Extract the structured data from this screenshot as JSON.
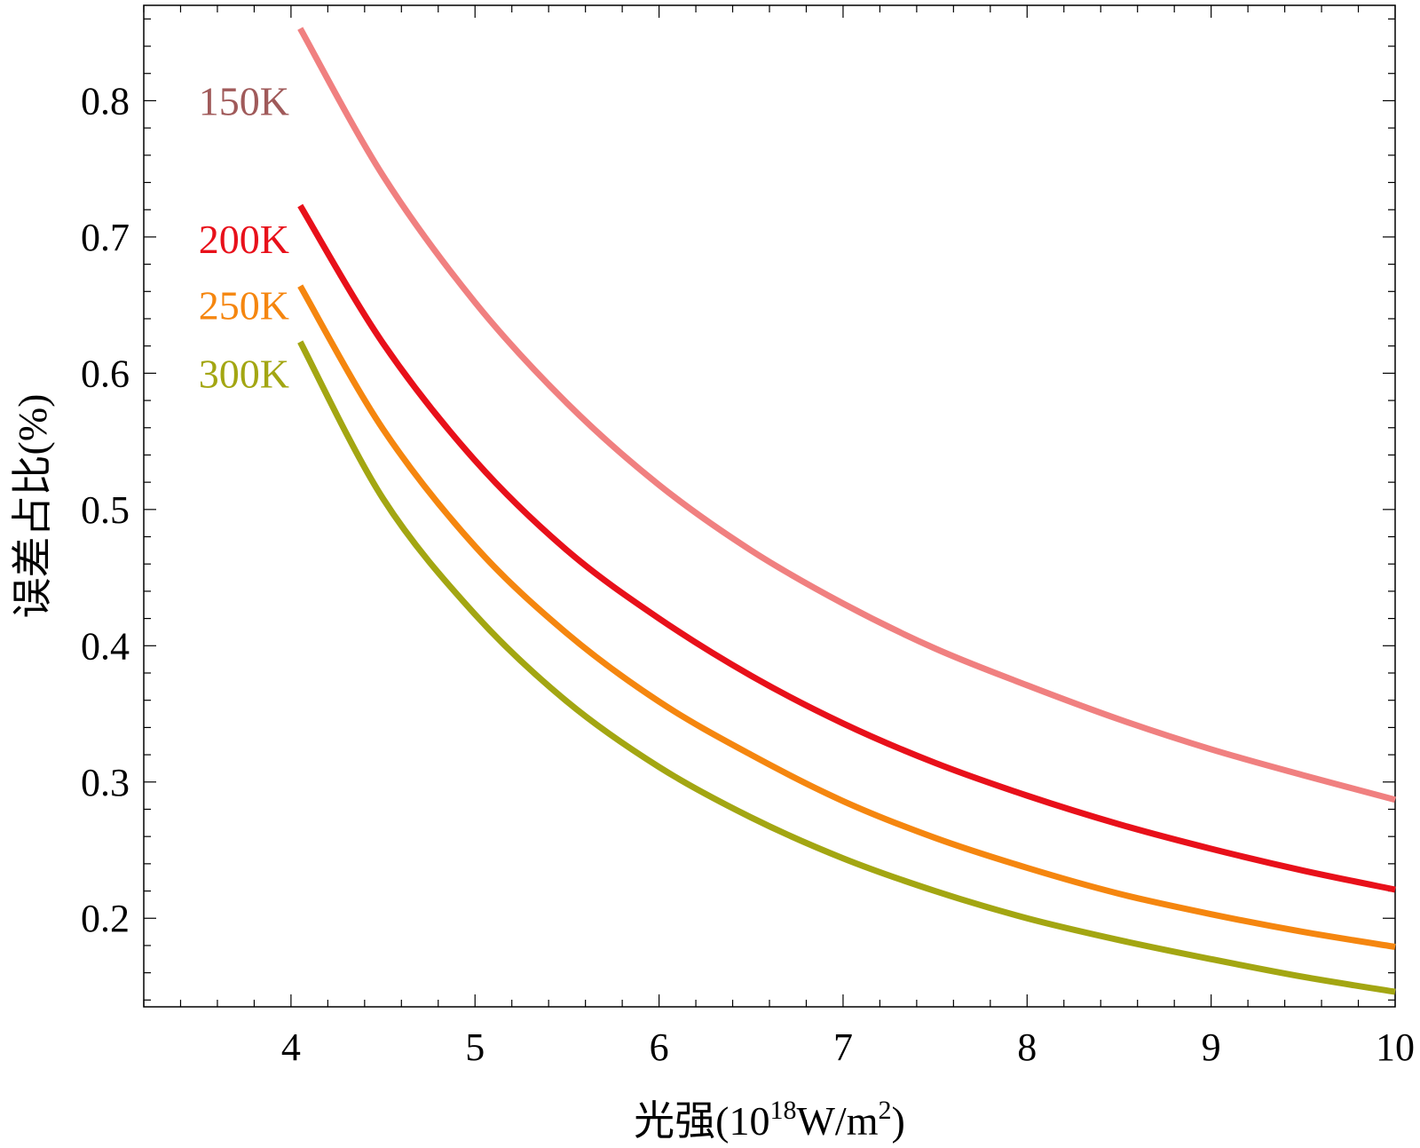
{
  "chart_data": {
    "type": "line",
    "title": "",
    "xlabel": "光强(10",
    "xlabel_exponent": "18",
    "xlabel_unit": "W/m",
    "xlabel_unit_exponent": "2",
    "xlabel_close": ")",
    "ylabel": "误差占比(%)",
    "xlim": [
      3.2,
      10
    ],
    "ylim": [
      0.135,
      0.87
    ],
    "x_ticks": [
      "4",
      "5",
      "6",
      "7",
      "8",
      "9",
      "10"
    ],
    "y_ticks": [
      "0.2",
      "0.3",
      "0.4",
      "0.5",
      "0.6",
      "0.7",
      "0.8"
    ],
    "x_tick_values": [
      4,
      5,
      6,
      7,
      8,
      9,
      10
    ],
    "y_tick_values": [
      0.2,
      0.3,
      0.4,
      0.5,
      0.6,
      0.7,
      0.8
    ],
    "grid": false,
    "x": [
      4.05,
      4.5,
      5,
      5.5,
      6,
      6.5,
      7,
      7.5,
      8,
      8.5,
      9,
      9.5,
      10
    ],
    "series": [
      {
        "name": "150K",
        "color": "#f08080",
        "label_color": "#a05a5a",
        "values": [
          0.853,
          0.745,
          0.652,
          0.578,
          0.518,
          0.47,
          0.431,
          0.398,
          0.371,
          0.346,
          0.324,
          0.305,
          0.287
        ]
      },
      {
        "name": "200K",
        "color": "#e8101a",
        "label_color": "#e8101a",
        "values": [
          0.723,
          0.622,
          0.536,
          0.47,
          0.42,
          0.378,
          0.343,
          0.314,
          0.29,
          0.269,
          0.251,
          0.235,
          0.221
        ]
      },
      {
        "name": "250K",
        "color": "#f5860f",
        "label_color": "#f5860f",
        "values": [
          0.664,
          0.559,
          0.473,
          0.409,
          0.359,
          0.32,
          0.286,
          0.259,
          0.237,
          0.218,
          0.203,
          0.19,
          0.179
        ]
      },
      {
        "name": "300K",
        "color": "#a3a612",
        "label_color": "#a3a612",
        "values": [
          0.623,
          0.508,
          0.423,
          0.359,
          0.311,
          0.274,
          0.244,
          0.22,
          0.2,
          0.184,
          0.17,
          0.157,
          0.146
        ]
      }
    ]
  }
}
